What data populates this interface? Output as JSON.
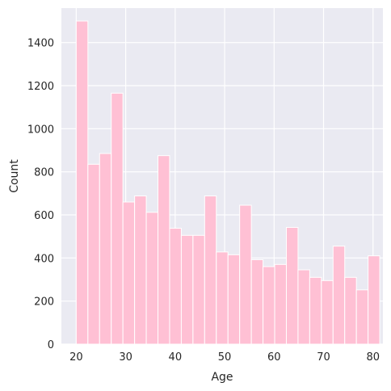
{
  "chart_data": {
    "type": "bar",
    "title": "",
    "xlabel": "Age",
    "ylabel": "Count",
    "xlim": [
      17,
      82
    ],
    "ylim": [
      0,
      1560
    ],
    "xticks": [
      20,
      30,
      40,
      50,
      60,
      70,
      80
    ],
    "yticks": [
      0,
      200,
      400,
      600,
      800,
      1000,
      1200,
      1400
    ],
    "grid": true,
    "colors": {
      "bar": "#ffc0d4",
      "background": "#eaeaf2",
      "grid": "#ffffff",
      "text": "#262626"
    },
    "bins": [
      {
        "x0": 20.0,
        "x1": 22.36,
        "count": 1500
      },
      {
        "x0": 22.36,
        "x1": 24.72,
        "count": 835
      },
      {
        "x0": 24.72,
        "x1": 27.08,
        "count": 885
      },
      {
        "x0": 27.08,
        "x1": 29.44,
        "count": 1165
      },
      {
        "x0": 29.44,
        "x1": 31.8,
        "count": 660
      },
      {
        "x0": 31.8,
        "x1": 34.16,
        "count": 688
      },
      {
        "x0": 34.16,
        "x1": 36.52,
        "count": 612
      },
      {
        "x0": 36.52,
        "x1": 38.88,
        "count": 875
      },
      {
        "x0": 38.88,
        "x1": 41.24,
        "count": 538
      },
      {
        "x0": 41.24,
        "x1": 43.6,
        "count": 505
      },
      {
        "x0": 43.6,
        "x1": 45.96,
        "count": 505
      },
      {
        "x0": 45.96,
        "x1": 48.32,
        "count": 688
      },
      {
        "x0": 48.32,
        "x1": 50.68,
        "count": 428
      },
      {
        "x0": 50.68,
        "x1": 53.04,
        "count": 415
      },
      {
        "x0": 53.04,
        "x1": 55.4,
        "count": 645
      },
      {
        "x0": 55.4,
        "x1": 57.76,
        "count": 392
      },
      {
        "x0": 57.76,
        "x1": 60.12,
        "count": 360
      },
      {
        "x0": 60.12,
        "x1": 62.48,
        "count": 370
      },
      {
        "x0": 62.48,
        "x1": 64.84,
        "count": 542
      },
      {
        "x0": 64.84,
        "x1": 67.2,
        "count": 345
      },
      {
        "x0": 67.2,
        "x1": 69.56,
        "count": 310
      },
      {
        "x0": 69.56,
        "x1": 71.92,
        "count": 295
      },
      {
        "x0": 71.92,
        "x1": 74.28,
        "count": 455
      },
      {
        "x0": 74.28,
        "x1": 76.64,
        "count": 310
      },
      {
        "x0": 76.64,
        "x1": 79.0,
        "count": 252
      },
      {
        "x0": 79.0,
        "x1": 79.0,
        "count": 410
      }
    ]
  }
}
